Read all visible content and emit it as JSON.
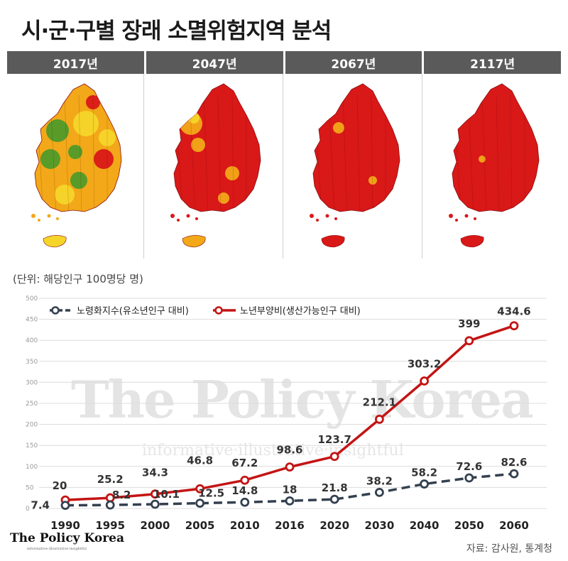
{
  "title": "시·군·구별 장래 소멸위험지역 분석",
  "map_years": [
    "2017년",
    "2047년",
    "2067년",
    "2117년"
  ],
  "map_colors": {
    "red": "#d91818",
    "orange": "#f2a818",
    "yellow": "#f5d52a",
    "green": "#4f9a2a",
    "darkred": "#b01010"
  },
  "unit_label": "(단위: 해당인구 100명당 명)",
  "brand": "The Policy Korea",
  "brand_tagline": "informative·illustrative·insightful",
  "source": "자료: 감사원, 통계청",
  "chart_data": {
    "type": "line",
    "categories": [
      "1990",
      "1995",
      "2000",
      "2005",
      "2010",
      "2016",
      "2020",
      "2030",
      "2040",
      "2050",
      "2060"
    ],
    "ylim": [
      0,
      500
    ],
    "yticks": [
      "0",
      "50",
      "100",
      "150",
      "200",
      "250",
      "300",
      "350",
      "400",
      "450",
      "500"
    ],
    "grid": true,
    "legend_position": "top-left",
    "series": [
      {
        "name": "노령화지수(유소년인구 대비)",
        "color": "#34404f",
        "style": "dashed",
        "values": [
          7.4,
          8.2,
          10.1,
          12.5,
          14.8,
          18,
          21.8,
          38.2,
          58.2,
          72.6,
          82.6
        ],
        "labels": [
          "7.4",
          "8.2",
          "10.1",
          "12.5",
          "14.8",
          "18",
          "21.8",
          "38.2",
          "58.2",
          "72.6",
          "82.6"
        ]
      },
      {
        "name": "노년부양비(생산가능인구 대비)",
        "color": "#c41414",
        "style": "solid",
        "values": [
          20,
          25.2,
          34.3,
          46.8,
          67.2,
          98.6,
          123.7,
          212.1,
          303.2,
          399,
          434.6
        ],
        "labels": [
          "20",
          "25.2",
          "34.3",
          "46.8",
          "67.2",
          "98.6",
          "123.7",
          "212.1",
          "303.2",
          "399",
          "434.6"
        ]
      }
    ]
  }
}
